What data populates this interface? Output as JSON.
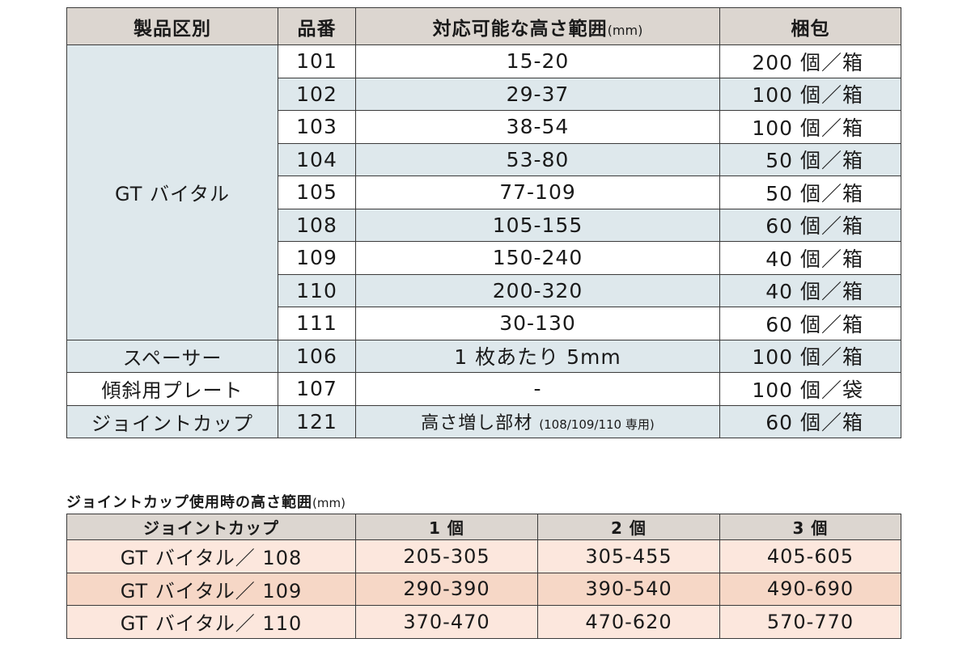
{
  "table1": {
    "headers": {
      "category": "製品区別",
      "part_no": "品番",
      "height_range_main": "対応可能な高さ範囲",
      "height_range_unit": "(mm)",
      "packaging": "梱包"
    },
    "rows": [
      {
        "category": "GT バイタル",
        "part_no": "101",
        "range": "15-20",
        "packaging": "200 個／箱"
      },
      {
        "part_no": "102",
        "range": "29-37",
        "packaging": "100 個／箱"
      },
      {
        "part_no": "103",
        "range": "38-54",
        "packaging": "100 個／箱"
      },
      {
        "part_no": "104",
        "range": "53-80",
        "packaging": "50 個／箱"
      },
      {
        "part_no": "105",
        "range": "77-109",
        "packaging": "50 個／箱"
      },
      {
        "part_no": "108",
        "range": "105-155",
        "packaging": "60 個／箱"
      },
      {
        "part_no": "109",
        "range": "150-240",
        "packaging": "40 個／箱"
      },
      {
        "part_no": "110",
        "range": "200-320",
        "packaging": "40 個／箱"
      },
      {
        "part_no": "111",
        "range": "30-130",
        "packaging": "60 個／箱"
      },
      {
        "category": "スペーサー",
        "part_no": "106",
        "range": "1 枚あたり 5mm",
        "packaging": "100 個／箱"
      },
      {
        "category": "傾斜用プレート",
        "part_no": "107",
        "range": "-",
        "packaging": "100 個／袋"
      },
      {
        "category": "ジョイントカップ",
        "part_no": "121",
        "range_main": "高さ増し部材 ",
        "range_note": "(108/109/110 専用)",
        "packaging": "60 個／箱"
      }
    ]
  },
  "table2": {
    "title_main": "ジョイントカップ使用時の高さ範囲",
    "title_unit": "(mm)",
    "headers": [
      "ジョイントカップ",
      "1 個",
      "2 個",
      "3 個"
    ],
    "rows": [
      [
        "GT バイタル／ 108",
        "205-305",
        "305-455",
        "405-605"
      ],
      [
        "GT バイタル／ 109",
        "290-390",
        "390-540",
        "490-690"
      ],
      [
        "GT バイタル／ 110",
        "370-470",
        "470-620",
        "570-770"
      ]
    ]
  }
}
